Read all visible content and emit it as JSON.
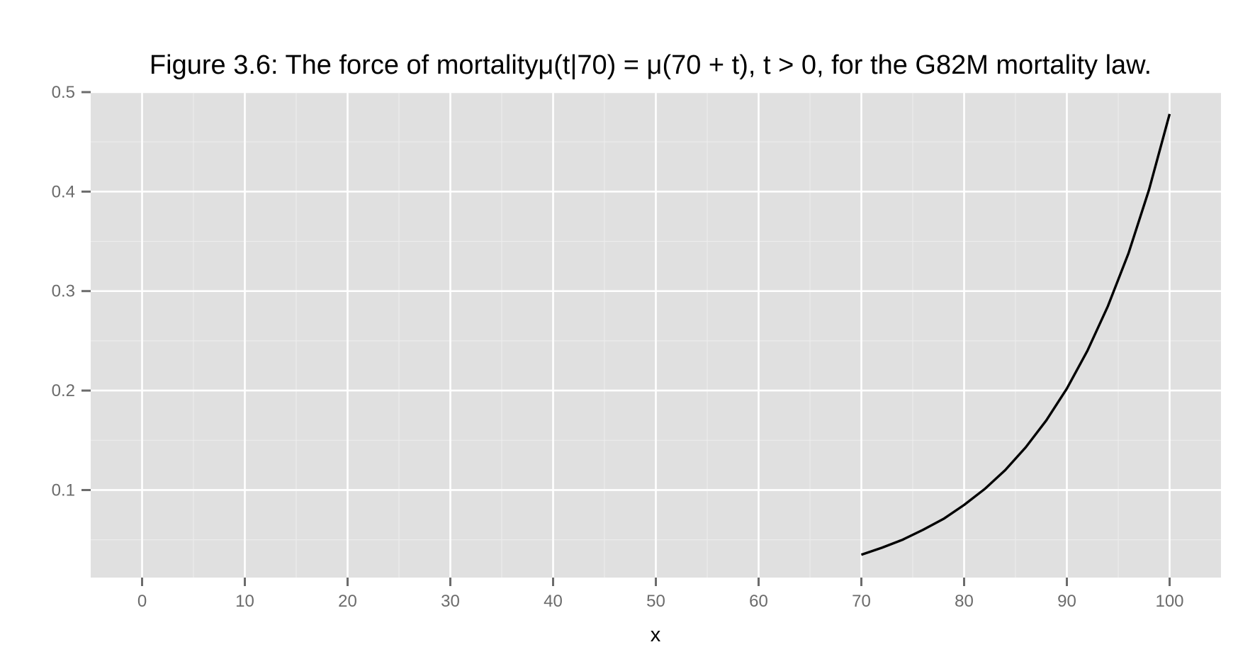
{
  "chart_data": {
    "type": "line",
    "title": "Figure 3.6: The force of mortalityμ(t|70) = μ(70 + t), t > 0, for the G82M mortality law.",
    "xlabel": "x",
    "ylabel": "",
    "xlim": [
      -5,
      105
    ],
    "ylim": [
      0.012,
      0.5
    ],
    "x_ticks": [
      0,
      10,
      20,
      30,
      40,
      50,
      60,
      70,
      80,
      90,
      100
    ],
    "y_ticks": [
      0.1,
      0.2,
      0.3,
      0.4,
      0.5
    ],
    "x_tick_labels": [
      "0",
      "10",
      "20",
      "30",
      "40",
      "50",
      "60",
      "70",
      "80",
      "90",
      "100"
    ],
    "y_tick_labels": [
      "0.1",
      "0.2",
      "0.3",
      "0.4",
      "0.5"
    ],
    "grid": true,
    "legend": "none",
    "series": [
      {
        "x": [
          70,
          72,
          74,
          76,
          78,
          80,
          82,
          84,
          86,
          88,
          90,
          92,
          94,
          96,
          98,
          100
        ],
        "values": [
          0.035,
          0.042,
          0.05,
          0.06,
          0.071,
          0.085,
          0.101,
          0.12,
          0.143,
          0.17,
          0.202,
          0.24,
          0.285,
          0.338,
          0.402,
          0.478
        ]
      }
    ]
  },
  "colors": {
    "panel_background": "#e0e0e0",
    "grid_major": "#ffffff",
    "grid_minor": "#ececec",
    "line": "#000000",
    "tick_mark": "#6b6b6b",
    "tick_text": "#6b6b6b"
  }
}
